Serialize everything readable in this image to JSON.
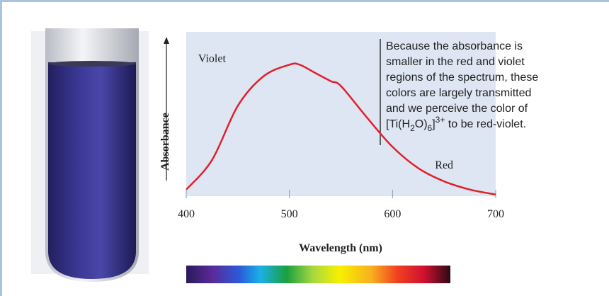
{
  "chart_data": {
    "type": "line",
    "x_label": "Wavelength (nm)",
    "y_label": "Absorbance",
    "x": [
      400,
      425,
      450,
      475,
      500,
      510,
      525,
      540,
      550,
      575,
      600,
      625,
      650,
      675,
      700
    ],
    "series": [
      {
        "color": "#e0202a",
        "values": [
          0.04,
          0.22,
          0.55,
          0.73,
          0.8,
          0.8,
          0.75,
          0.7,
          0.67,
          0.48,
          0.3,
          0.17,
          0.09,
          0.04,
          0.01
        ]
      }
    ],
    "xlim": [
      400,
      700
    ],
    "ylim": [
      0,
      1
    ],
    "xticks": [
      400,
      500,
      600,
      700
    ],
    "annotations": [
      {
        "text": "Violet",
        "x": 425,
        "y": 0.8
      },
      {
        "text": "Red",
        "x": 650,
        "y": 0.15
      }
    ],
    "note": {
      "lines": [
        "Because the absorbance is",
        "smaller in the red and violet",
        "regions of the spectrum, these",
        "colors are largely transmitted",
        "and we perceive the color of"
      ],
      "formula": [
        "[Ti(H",
        "2",
        "O)",
        "6",
        "]",
        "3+"
      ],
      "tail": " to be red-violet."
    }
  }
}
